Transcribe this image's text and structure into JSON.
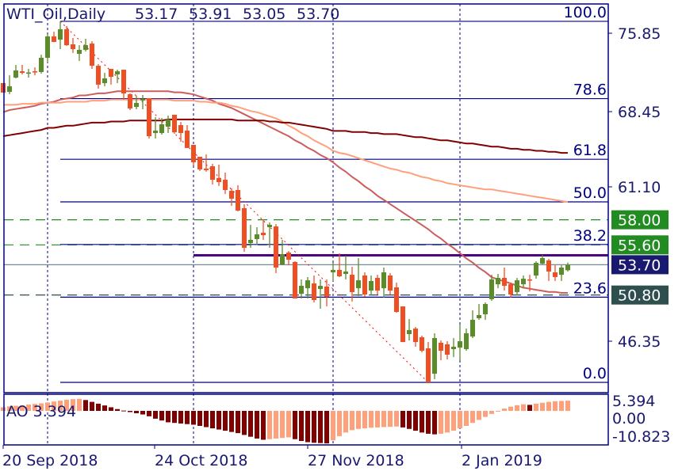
{
  "chart_data": {
    "type": "candlestick",
    "title": "WTI_Oil,Daily",
    "header_values": [
      "53.17",
      "53.91",
      "53.05",
      "53.70"
    ],
    "ylim": [
      41.6,
      78.3
    ],
    "y_ticks": [
      "75.85",
      "68.45",
      "61.10",
      "46.35"
    ],
    "x_tick_labels": [
      "20 Sep 2018",
      "24 Oct 2018",
      "27 Nov 2018",
      "2 Jan 2019"
    ],
    "grid": "vertical dashed lines at date ticks",
    "colors": {
      "bull": "#5b8c2a",
      "bear": "#f04e23",
      "axis": "#000080",
      "text": "#191970",
      "fib_diagonal": "#ff0000"
    },
    "ohlc": [
      [
        71.08,
        71.08,
        70.17,
        70.17
      ],
      [
        70.24,
        71.83,
        70.02,
        70.77
      ],
      [
        71.61,
        72.82,
        71.53,
        72.29
      ],
      [
        72.21,
        72.82,
        71.91,
        72.06
      ],
      [
        72.0,
        72.44,
        71.61,
        72.1
      ],
      [
        72.21,
        72.59,
        71.83,
        72.14
      ],
      [
        72.14,
        73.8,
        71.99,
        73.5
      ],
      [
        73.5,
        75.77,
        73.05,
        75.55
      ],
      [
        75.55,
        76.0,
        75.0,
        75.02
      ],
      [
        75.24,
        76.99,
        74.33,
        76.23
      ],
      [
        76.23,
        76.53,
        74.64,
        74.71
      ],
      [
        74.79,
        75.4,
        73.96,
        74.33
      ],
      [
        73.88,
        74.71,
        73.2,
        74.26
      ],
      [
        74.26,
        75.32,
        74.11,
        74.71
      ],
      [
        74.86,
        75.09,
        72.44,
        72.74
      ],
      [
        72.74,
        72.9,
        70.55,
        70.93
      ],
      [
        71.08,
        72.06,
        70.77,
        71.53
      ],
      [
        72.44,
        72.44,
        70.93,
        71.68
      ],
      [
        71.91,
        72.36,
        71.08,
        72.21
      ],
      [
        72.36,
        72.36,
        69.49,
        70.09
      ],
      [
        70.02,
        70.09,
        68.5,
        68.65
      ],
      [
        68.8,
        69.87,
        68.58,
        69.18
      ],
      [
        69.41,
        69.94,
        68.58,
        69.56
      ],
      [
        69.64,
        69.64,
        65.77,
        66.0
      ],
      [
        66.3,
        67.82,
        65.77,
        66.53
      ],
      [
        66.3,
        67.74,
        66.15,
        67.14
      ],
      [
        66.91,
        67.97,
        66.3,
        67.59
      ],
      [
        68.05,
        68.05,
        66.23,
        66.38
      ],
      [
        67.06,
        67.36,
        65.47,
        66.3
      ],
      [
        66.53,
        67.06,
        64.87,
        64.87
      ],
      [
        65.17,
        65.17,
        63.2,
        63.5
      ],
      [
        64.03,
        64.03,
        62.67,
        62.82
      ],
      [
        62.9,
        64.26,
        62.6,
        62.75
      ],
      [
        63.12,
        63.35,
        61.38,
        61.83
      ],
      [
        61.99,
        63.27,
        61.23,
        61.61
      ],
      [
        61.83,
        62.52,
        60.47,
        60.85
      ],
      [
        60.77,
        61.0,
        59.33,
        60.02
      ],
      [
        60.85,
        61.3,
        58.8,
        58.88
      ],
      [
        59.11,
        59.49,
        54.94,
        55.32
      ],
      [
        55.77,
        57.52,
        55.32,
        56.08
      ],
      [
        56.15,
        57.29,
        55.62,
        56.61
      ],
      [
        56.76,
        58.05,
        56.08,
        56.53
      ],
      [
        57.29,
        57.74,
        55.32,
        57.52
      ],
      [
        57.36,
        57.59,
        52.9,
        53.43
      ],
      [
        53.73,
        56.08,
        53.65,
        54.71
      ],
      [
        54.86,
        55.02,
        53.65,
        54.18
      ],
      [
        53.96,
        54.03,
        50.47,
        50.47
      ],
      [
        50.92,
        52.29,
        50.47,
        51.68
      ],
      [
        51.45,
        52.52,
        50.47,
        52.21
      ],
      [
        51.91,
        52.67,
        50.09,
        50.32
      ],
      [
        51.38,
        52.29,
        49.49,
        51.68
      ],
      [
        51.61,
        52.29,
        49.71,
        50.62
      ],
      [
        52.97,
        53.88,
        52.14,
        53.2
      ],
      [
        53.2,
        54.79,
        52.52,
        52.59
      ],
      [
        52.82,
        54.56,
        52.29,
        53.05
      ],
      [
        52.74,
        53.5,
        50.17,
        51.08
      ],
      [
        51.45,
        54.33,
        50.7,
        52.21
      ],
      [
        52.67,
        52.97,
        50.62,
        50.85
      ],
      [
        51.23,
        52.67,
        50.77,
        52.14
      ],
      [
        52.44,
        52.74,
        50.85,
        51.23
      ],
      [
        51.45,
        53.43,
        50.55,
        52.97
      ],
      [
        52.67,
        52.9,
        50.85,
        51.23
      ],
      [
        51.53,
        51.99,
        49.11,
        49.18
      ],
      [
        49.71,
        49.71,
        46.3,
        46.3
      ],
      [
        47.06,
        48.5,
        46.45,
        47.44
      ],
      [
        47.59,
        47.74,
        45.85,
        46.3
      ],
      [
        46.76,
        46.91,
        45.32,
        45.47
      ],
      [
        45.7,
        46.3,
        42.44,
        42.44
      ],
      [
        43.27,
        47.14,
        42.74,
        46.68
      ],
      [
        46.23,
        46.45,
        44.56,
        45.47
      ],
      [
        46.08,
        46.38,
        44.64,
        45.09
      ],
      [
        45.62,
        46.68,
        44.86,
        45.85
      ],
      [
        45.77,
        47.97,
        44.56,
        46.38
      ],
      [
        45.62,
        47.59,
        45.47,
        47.14
      ],
      [
        46.83,
        49.34,
        46.68,
        48.43
      ],
      [
        48.58,
        49.94,
        48.43,
        48.88
      ],
      [
        48.96,
        50.09,
        48.43,
        49.94
      ],
      [
        50.4,
        52.74,
        50.24,
        52.29
      ],
      [
        51.83,
        52.82,
        51.45,
        52.44
      ],
      [
        52.44,
        53.43,
        51.23,
        51.68
      ],
      [
        51.83,
        51.99,
        50.55,
        50.85
      ],
      [
        51.08,
        52.44,
        50.77,
        52.21
      ],
      [
        51.83,
        52.67,
        51.45,
        52.36
      ],
      [
        52.29,
        52.74,
        51.15,
        52.21
      ],
      [
        52.67,
        54.03,
        52.36,
        53.88
      ],
      [
        53.8,
        54.64,
        53.73,
        54.33
      ],
      [
        54.11,
        54.26,
        52.14,
        53.05
      ],
      [
        52.97,
        53.65,
        52.14,
        52.52
      ],
      [
        52.74,
        53.65,
        52.14,
        53.43
      ],
      [
        53.17,
        53.91,
        53.05,
        53.7
      ]
    ],
    "date_tick_bars": [
      7,
      30,
      52,
      72
    ],
    "moving_averages": [
      {
        "color": "#cd5c5c",
        "values": [
          68.3,
          68.5,
          68.6,
          68.7,
          68.8,
          68.9,
          69.1,
          69.2,
          69.3,
          69.5,
          69.6,
          69.7,
          69.9,
          69.9,
          70.0,
          70.1,
          70.1,
          70.2,
          70.3,
          70.3,
          70.3,
          70.3,
          70.3,
          70.3,
          70.3,
          70.3,
          70.3,
          70.2,
          70.2,
          70.1,
          70.0,
          69.8,
          69.6,
          69.4,
          69.1,
          68.9,
          68.7,
          68.4,
          68.1,
          67.8,
          67.5,
          67.2,
          66.9,
          66.6,
          66.3,
          66.0,
          65.6,
          65.3,
          64.9,
          64.6,
          64.2,
          63.9,
          63.5,
          63.0,
          62.6,
          62.1,
          61.7,
          61.2,
          60.8,
          60.3,
          59.9,
          59.5,
          59.1,
          58.7,
          58.3,
          57.9,
          57.5,
          57.1,
          56.6,
          56.2,
          55.7,
          55.3,
          54.8,
          54.3,
          53.9,
          53.4,
          53.0,
          52.5,
          52.3,
          52.1,
          51.9,
          51.7,
          51.5,
          51.4,
          51.3,
          51.2,
          51.1,
          51.1,
          51.0,
          51.0
        ]
      },
      {
        "color": "#ffa07a",
        "values": [
          69.0,
          69.0,
          69.0,
          69.1,
          69.1,
          69.1,
          69.2,
          69.2,
          69.2,
          69.2,
          69.3,
          69.3,
          69.3,
          69.3,
          69.4,
          69.4,
          69.4,
          69.5,
          69.5,
          69.5,
          69.5,
          69.5,
          69.5,
          69.5,
          69.5,
          69.5,
          69.5,
          69.4,
          69.4,
          69.4,
          69.4,
          69.3,
          69.3,
          69.2,
          69.2,
          69.1,
          68.9,
          68.8,
          68.6,
          68.4,
          68.3,
          68.1,
          67.9,
          67.7,
          67.4,
          67.0,
          66.7,
          66.3,
          66.0,
          65.6,
          65.3,
          65.0,
          64.6,
          64.4,
          64.3,
          64.1,
          63.9,
          63.7,
          63.5,
          63.3,
          63.1,
          62.9,
          62.8,
          62.6,
          62.5,
          62.3,
          62.1,
          62.0,
          61.8,
          61.7,
          61.5,
          61.4,
          61.3,
          61.2,
          61.1,
          61.0,
          60.9,
          60.9,
          60.8,
          60.7,
          60.6,
          60.5,
          60.4,
          60.3,
          60.2,
          60.1,
          60.0,
          59.9,
          59.8,
          59.7
        ]
      },
      {
        "color": "#800000",
        "values": [
          66.0,
          66.1,
          66.2,
          66.3,
          66.4,
          66.5,
          66.6,
          66.8,
          66.8,
          66.9,
          67.0,
          67.0,
          67.1,
          67.2,
          67.3,
          67.3,
          67.3,
          67.4,
          67.4,
          67.4,
          67.5,
          67.5,
          67.5,
          67.5,
          67.5,
          67.5,
          67.6,
          67.6,
          67.6,
          67.6,
          67.6,
          67.6,
          67.6,
          67.6,
          67.6,
          67.6,
          67.6,
          67.5,
          67.5,
          67.5,
          67.5,
          67.5,
          67.4,
          67.4,
          67.3,
          67.3,
          67.2,
          67.1,
          67.0,
          66.9,
          66.8,
          66.7,
          66.5,
          66.5,
          66.5,
          66.4,
          66.4,
          66.4,
          66.3,
          66.3,
          66.2,
          66.2,
          66.2,
          66.1,
          66.0,
          65.9,
          65.9,
          65.8,
          65.7,
          65.6,
          65.6,
          65.5,
          65.4,
          65.3,
          65.3,
          65.2,
          65.1,
          65.0,
          65.0,
          64.9,
          64.8,
          64.8,
          64.7,
          64.7,
          64.6,
          64.6,
          64.5,
          64.5,
          64.4,
          64.4
        ]
      }
    ],
    "fibonacci": {
      "high": 76.99,
      "low": 42.44,
      "high_bar": 9,
      "low_bar": 67,
      "levels": [
        {
          "label": "100.0",
          "ratio": 1.0
        },
        {
          "label": "78.6",
          "ratio": 0.786
        },
        {
          "label": "61.8",
          "ratio": 0.618
        },
        {
          "label": "50.0",
          "ratio": 0.5
        },
        {
          "label": "38.2",
          "ratio": 0.382
        },
        {
          "label": "23.6",
          "ratio": 0.236
        },
        {
          "label": "0.0",
          "ratio": 0.0
        }
      ]
    },
    "horizontal_levels": [
      {
        "label": "58.00",
        "price": 58.0,
        "style": "dashed",
        "color": "#228b22",
        "badge": "#228b22"
      },
      {
        "label": "55.60",
        "price": 55.6,
        "style": "dashed",
        "color": "#228b22",
        "badge": "#228b22"
      },
      {
        "label": "53.70",
        "price": 53.7,
        "style": "solid",
        "color": "#778899",
        "badge": "#191970"
      },
      {
        "label": "50.80",
        "price": 50.8,
        "style": "dashed",
        "color": "#2f4f4f",
        "badge": "#2f4f4f"
      }
    ],
    "resistance_line": {
      "price": 54.6,
      "from_bar": 30,
      "color": "#4b0082"
    },
    "awesome_oscillator": {
      "label": "AO 3.394",
      "y_ticks": [
        "5.394",
        "0.00",
        "-10.823"
      ],
      "ylim": [
        -10.823,
        5.394
      ],
      "colors": {
        "up": "#ffa07a",
        "down": "#800000"
      },
      "values": [
        1.2,
        1.5,
        1.7,
        1.9,
        2.1,
        2.3,
        2.5,
        2.8,
        3.1,
        3.4,
        3.7,
        3.9,
        4.0,
        3.6,
        3.0,
        2.4,
        1.8,
        1.2,
        0.6,
        0.1,
        -0.4,
        -0.8,
        -1.2,
        -1.8,
        -2.6,
        -3.2,
        -3.8,
        -4.0,
        -4.2,
        -4.4,
        -4.6,
        -5.0,
        -5.4,
        -5.8,
        -6.2,
        -6.6,
        -7.0,
        -7.4,
        -8.0,
        -8.6,
        -9.2,
        -9.6,
        -9.4,
        -9.2,
        -9.0,
        -8.8,
        -9.4,
        -10.0,
        -10.4,
        -10.6,
        -10.7,
        -10.823,
        -9.8,
        -8.4,
        -7.2,
        -6.4,
        -6.0,
        -5.8,
        -5.6,
        -5.5,
        -5.4,
        -5.3,
        -5.2,
        -5.5,
        -6.0,
        -6.6,
        -7.2,
        -7.6,
        -7.8,
        -7.6,
        -7.2,
        -6.6,
        -5.8,
        -5.0,
        -4.0,
        -3.0,
        -2.0,
        -1.0,
        0.0,
        0.8,
        1.4,
        1.9,
        2.2,
        2.0,
        2.4,
        2.7,
        3.0,
        3.2,
        3.3,
        3.394
      ]
    }
  }
}
